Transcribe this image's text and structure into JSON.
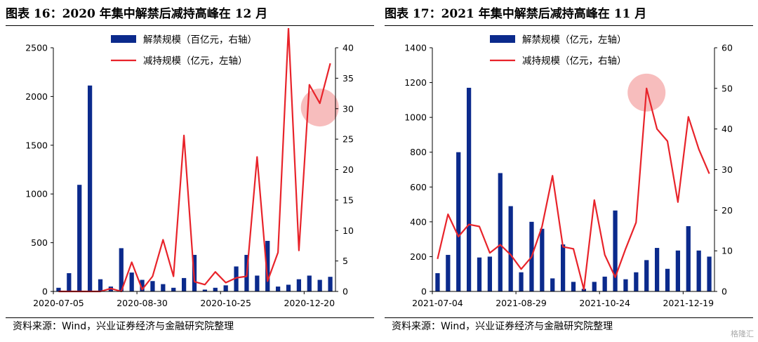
{
  "colors": {
    "bar": "#0b2a8c",
    "line": "#e8232a",
    "highlight": "#f4a7a7"
  },
  "watermark": "格隆汇",
  "charts": [
    {
      "title": "图表 16：2020 年集中解禁后减持高峰在 12 月",
      "source": "资料来源：Wind，兴业证券经济与金融研究院整理",
      "chart_data": {
        "type": "bar",
        "legend": {
          "bar": "解禁规模（百亿元，右轴）",
          "line": "减持规模（亿元，左轴）",
          "position": "top-center"
        },
        "left_axis": {
          "ticks": [
            0,
            500,
            1000,
            1500,
            2000,
            2500
          ],
          "ylim": [
            0,
            2500
          ]
        },
        "right_axis": {
          "ticks": [
            0,
            5,
            10,
            15,
            20,
            25,
            30,
            35,
            40
          ],
          "ylim": [
            0,
            40
          ]
        },
        "x_tick_labels": [
          "2020-07-05",
          "2020-08-30",
          "2020-10-25",
          "2020-12-20"
        ],
        "x_tick_index": [
          0,
          8,
          16,
          24
        ],
        "bars_axis": "right",
        "line_axis": "left",
        "bars": [
          0.6,
          3.0,
          17.5,
          33.8,
          2.0,
          0.8,
          7.1,
          3.1,
          1.9,
          1.7,
          1.2,
          0.6,
          2.2,
          6.0,
          0.3,
          0.6,
          1.0,
          4.1,
          6.0,
          2.6,
          8.3,
          0.8,
          1.1,
          2.0,
          2.6,
          1.9,
          2.4
        ],
        "line": [
          0,
          0,
          0,
          0,
          0,
          30,
          0,
          300,
          20,
          155,
          530,
          155,
          1600,
          100,
          70,
          200,
          90,
          140,
          155,
          1380,
          105,
          400,
          2700,
          420,
          2120,
          1930,
          2340
        ],
        "highlight_index": 25
      }
    },
    {
      "title": "图表 17：2021 年集中解禁后减持高峰在 11 月",
      "source": "资料来源：Wind，兴业证券经济与金融研究院整理",
      "chart_data": {
        "type": "bar",
        "legend": {
          "bar": "解禁规模（亿元，左轴）",
          "line": "减持规模（亿元，右轴）",
          "position": "top-center"
        },
        "left_axis": {
          "ticks": [
            0,
            200,
            400,
            600,
            800,
            1000,
            1200,
            1400
          ],
          "ylim": [
            0,
            1400
          ]
        },
        "right_axis": {
          "ticks": [
            0,
            10,
            20,
            30,
            40,
            50,
            60
          ],
          "ylim": [
            0,
            60
          ]
        },
        "x_tick_labels": [
          "2021-07-04",
          "2021-08-29",
          "2021-10-24",
          "2021-12-19"
        ],
        "x_tick_index": [
          0,
          8,
          16,
          24
        ],
        "bars_axis": "left",
        "line_axis": "right",
        "bars": [
          105,
          210,
          800,
          1170,
          195,
          200,
          680,
          490,
          110,
          400,
          360,
          75,
          270,
          55,
          15,
          55,
          85,
          465,
          70,
          110,
          180,
          250,
          130,
          235,
          375,
          235,
          200
        ],
        "line": [
          8,
          19,
          13.5,
          16.5,
          16,
          9.5,
          11.5,
          9,
          5.5,
          8.5,
          16,
          28.5,
          11,
          10.5,
          0.5,
          22.5,
          9,
          3.5,
          10.5,
          17,
          50,
          40,
          37,
          22,
          43,
          35,
          29
        ],
        "highlight_index": 20
      }
    }
  ]
}
